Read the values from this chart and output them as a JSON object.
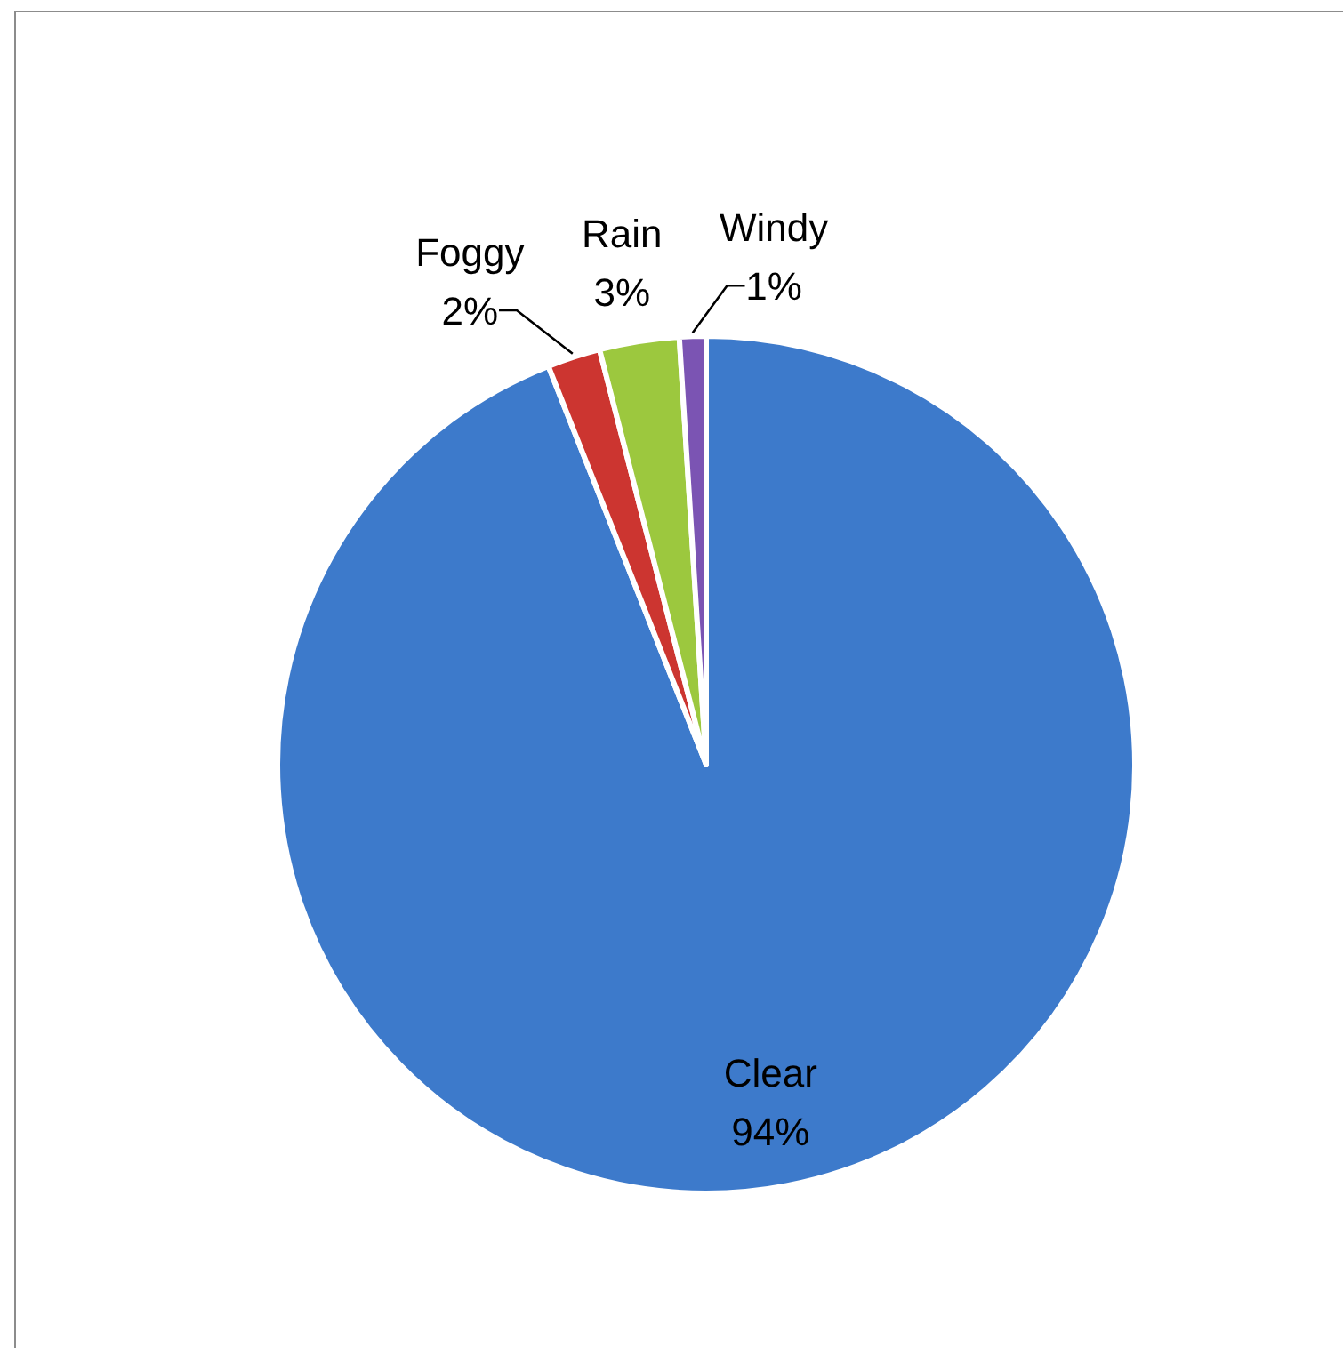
{
  "chart_data": {
    "type": "pie",
    "categories": [
      "Clear",
      "Foggy",
      "Rain",
      "Windy"
    ],
    "values": [
      94,
      2,
      3,
      1
    ],
    "value_labels": [
      "94%",
      "2%",
      "3%",
      "1%"
    ],
    "colors": [
      "#3d7acb",
      "#cc3530",
      "#9cc83e",
      "#7b54b3"
    ]
  }
}
